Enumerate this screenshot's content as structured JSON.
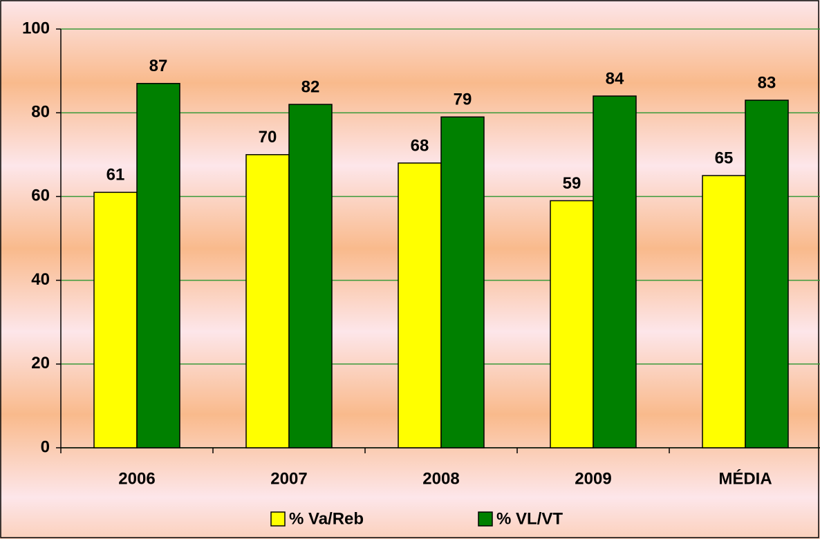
{
  "chart_data": {
    "type": "bar",
    "categories": [
      "2006",
      "2007",
      "2008",
      "2009",
      "MÉDIA"
    ],
    "series": [
      {
        "name": "% Va/Reb",
        "color": "#ffff00",
        "values": [
          61,
          70,
          68,
          59,
          65
        ]
      },
      {
        "name": "% VL/VT",
        "color": "#008000",
        "values": [
          87,
          82,
          79,
          84,
          83
        ]
      }
    ],
    "ylim": [
      0,
      100
    ],
    "yticks": [
      0,
      20,
      40,
      60,
      80,
      100
    ],
    "grid": true,
    "legend": "bottom"
  }
}
